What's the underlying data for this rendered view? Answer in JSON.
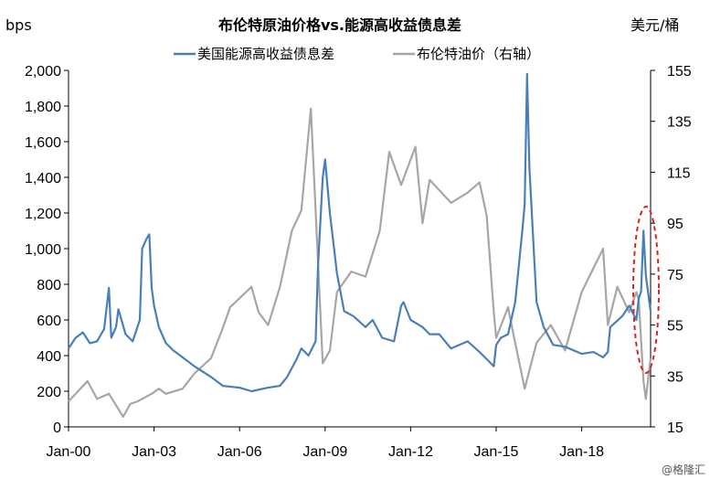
{
  "chart_data": {
    "type": "line",
    "title": "布伦特原油价格vs.能源高收益债息差",
    "left_unit": "bps",
    "right_unit": "美元/桶",
    "ylim": [
      0,
      2000
    ],
    "y2lim": [
      15,
      155
    ],
    "y_ticks": [
      "0",
      "200",
      "400",
      "600",
      "800",
      "1,000",
      "1,200",
      "1,400",
      "1,600",
      "1,800",
      "2,000"
    ],
    "y2_ticks": [
      "15",
      "35",
      "55",
      "75",
      "95",
      "115",
      "135",
      "155"
    ],
    "x_ticks": [
      "Jan-00",
      "Jan-03",
      "Jan-06",
      "Jan-09",
      "Jan-12",
      "Jan-15",
      "Jan-18"
    ],
    "xlim": [
      "2000-01",
      "2020-06"
    ],
    "legend_position": "top",
    "series": [
      {
        "name": "美国能源高收益债息差",
        "axis": "left",
        "color": "#4a7ebb",
        "x": [
          "2000-01",
          "2000-04",
          "2000-07",
          "2000-10",
          "2001-01",
          "2001-04",
          "2001-06",
          "2001-07",
          "2001-09",
          "2001-10",
          "2002-01",
          "2002-04",
          "2002-07",
          "2002-08",
          "2002-10",
          "2002-11",
          "2002-12",
          "2003-01",
          "2003-03",
          "2003-06",
          "2003-09",
          "2004-01",
          "2004-06",
          "2005-01",
          "2005-06",
          "2006-01",
          "2006-06",
          "2007-01",
          "2007-06",
          "2007-09",
          "2008-01",
          "2008-03",
          "2008-06",
          "2008-09",
          "2008-10",
          "2008-12",
          "2009-01",
          "2009-03",
          "2009-06",
          "2009-09",
          "2010-01",
          "2010-06",
          "2010-09",
          "2011-01",
          "2011-06",
          "2011-09",
          "2011-10",
          "2012-01",
          "2012-06",
          "2012-09",
          "2013-01",
          "2013-06",
          "2014-01",
          "2014-06",
          "2014-09",
          "2014-12",
          "2015-01",
          "2015-03",
          "2015-06",
          "2015-09",
          "2015-12",
          "2016-01",
          "2016-02",
          "2016-03",
          "2016-06",
          "2016-09",
          "2017-01",
          "2017-06",
          "2018-01",
          "2018-06",
          "2018-10",
          "2018-12",
          "2019-01",
          "2019-06",
          "2019-09",
          "2019-12",
          "2020-01",
          "2020-02",
          "2020-03",
          "2020-04",
          "2020-06"
        ],
        "values": [
          440,
          500,
          530,
          470,
          480,
          550,
          780,
          500,
          560,
          660,
          520,
          480,
          600,
          1000,
          1060,
          1080,
          780,
          680,
          560,
          470,
          430,
          390,
          340,
          280,
          230,
          220,
          200,
          220,
          230,
          280,
          380,
          440,
          400,
          480,
          900,
          1400,
          1500,
          1200,
          860,
          650,
          620,
          560,
          600,
          500,
          480,
          680,
          700,
          600,
          560,
          520,
          520,
          440,
          480,
          420,
          380,
          340,
          460,
          500,
          520,
          700,
          1100,
          1250,
          1980,
          1450,
          700,
          560,
          460,
          450,
          410,
          420,
          390,
          420,
          560,
          620,
          680,
          600,
          720,
          760,
          1100,
          850,
          650
        ],
        "x_value_unit": "month"
      },
      {
        "name": "布伦特油价（右轴）",
        "axis": "right",
        "color": "#a6a6a6",
        "x": [
          "2000-01",
          "2000-06",
          "2000-09",
          "2001-01",
          "2001-06",
          "2001-12",
          "2002-03",
          "2002-06",
          "2002-12",
          "2003-03",
          "2003-06",
          "2004-01",
          "2004-06",
          "2005-01",
          "2005-06",
          "2005-09",
          "2006-06",
          "2006-09",
          "2007-01",
          "2007-06",
          "2007-11",
          "2008-03",
          "2008-07",
          "2008-09",
          "2008-12",
          "2009-03",
          "2009-06",
          "2009-12",
          "2010-06",
          "2010-12",
          "2011-04",
          "2011-09",
          "2012-03",
          "2012-06",
          "2012-09",
          "2013-06",
          "2014-01",
          "2014-06",
          "2014-09",
          "2014-12",
          "2015-01",
          "2015-06",
          "2015-09",
          "2016-01",
          "2016-06",
          "2016-12",
          "2017-06",
          "2018-01",
          "2018-10",
          "2018-12",
          "2019-04",
          "2019-09",
          "2019-12",
          "2020-01",
          "2020-03",
          "2020-04",
          "2020-06"
        ],
        "values": [
          25,
          30,
          33,
          26,
          28,
          19,
          24,
          25,
          28,
          30,
          28,
          30,
          36,
          42,
          54,
          62,
          70,
          60,
          55,
          70,
          92,
          100,
          140,
          100,
          40,
          45,
          68,
          76,
          74,
          92,
          123,
          110,
          125,
          95,
          112,
          103,
          107,
          111,
          98,
          60,
          50,
          62,
          48,
          30,
          48,
          55,
          45,
          68,
          85,
          55,
          70,
          60,
          68,
          65,
          33,
          26,
          42
        ],
        "x_value_unit": "month"
      }
    ],
    "annotations": [
      "red dashed ellipse highlighting 2020 spread spike"
    ]
  },
  "watermark": "@格隆汇"
}
